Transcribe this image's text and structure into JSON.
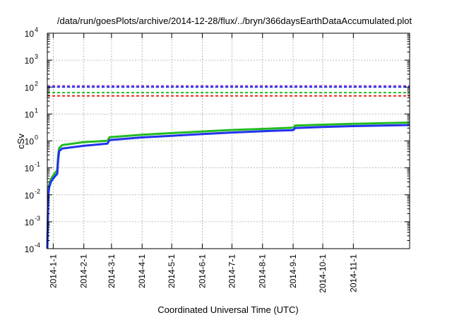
{
  "chart_data": {
    "type": "line",
    "title": "/data/run/goesPlots/archive/2014-12-28/flux/../bryn/366daysEarthDataAccumulated.plot",
    "xlabel": "Coordinated Universal Time (UTC)",
    "ylabel": "cSv",
    "xlim": [
      "2013-12-26",
      "2014-12-28"
    ],
    "ylim": [
      0.0001,
      10000
    ],
    "yscale": "log",
    "grid": true,
    "x_ticks": [
      "2014-1-1",
      "2014-2-1",
      "2014-3-1",
      "2014-4-1",
      "2014-5-1",
      "2014-6-1",
      "2014-7-1",
      "2014-8-1",
      "2014-9-1",
      "2014-10-1",
      "2014-11-1"
    ],
    "y_ticks": [
      {
        "value": 0.0001,
        "base": "10",
        "exp": "-4"
      },
      {
        "value": 0.001,
        "base": "10",
        "exp": "-3"
      },
      {
        "value": 0.01,
        "base": "10",
        "exp": "-2"
      },
      {
        "value": 0.1,
        "base": "10",
        "exp": "-1"
      },
      {
        "value": 1,
        "base": "10",
        "exp": "0"
      },
      {
        "value": 10,
        "base": "10",
        "exp": "1"
      },
      {
        "value": 100,
        "base": "10",
        "exp": "2"
      },
      {
        "value": 1000,
        "base": "10",
        "exp": "3"
      },
      {
        "value": 10000,
        "base": "10",
        "exp": "4"
      }
    ],
    "threshold_lines": [
      {
        "value": 110,
        "color": "#9a3dd6"
      },
      {
        "value": 100,
        "color": "#2233ee"
      },
      {
        "value": 62,
        "color": "#22bb22"
      },
      {
        "value": 47,
        "color": "#ee2222"
      }
    ],
    "series": [
      {
        "color": "#22bb22",
        "points": [
          [
            "2013-12-26",
            0.0001
          ],
          [
            "2013-12-27",
            0.012
          ],
          [
            "2013-12-28",
            0.025
          ],
          [
            "2013-12-30",
            0.04
          ],
          [
            "2014-01-02",
            0.06
          ],
          [
            "2014-01-05",
            0.08
          ],
          [
            "2014-01-06",
            0.3
          ],
          [
            "2014-01-07",
            0.55
          ],
          [
            "2014-01-10",
            0.7
          ],
          [
            "2014-02-01",
            0.9
          ],
          [
            "2014-02-25",
            1.02
          ],
          [
            "2014-02-27",
            1.38
          ],
          [
            "2014-04-01",
            1.7
          ],
          [
            "2014-05-01",
            1.95
          ],
          [
            "2014-06-01",
            2.25
          ],
          [
            "2014-07-01",
            2.55
          ],
          [
            "2014-08-01",
            2.8
          ],
          [
            "2014-09-01",
            3.1
          ],
          [
            "2014-09-03",
            3.7
          ],
          [
            "2014-10-01",
            4.0
          ],
          [
            "2014-11-01",
            4.3
          ],
          [
            "2014-12-28",
            4.8
          ]
        ]
      },
      {
        "color": "#2233ee",
        "points": [
          [
            "2013-12-26",
            0.0001
          ],
          [
            "2013-12-27",
            0.01
          ],
          [
            "2013-12-28",
            0.02
          ],
          [
            "2013-12-30",
            0.032
          ],
          [
            "2014-01-02",
            0.045
          ],
          [
            "2014-01-05",
            0.06
          ],
          [
            "2014-01-06",
            0.2
          ],
          [
            "2014-01-07",
            0.42
          ],
          [
            "2014-01-10",
            0.52
          ],
          [
            "2014-02-01",
            0.66
          ],
          [
            "2014-02-25",
            0.8
          ],
          [
            "2014-02-27",
            1.08
          ],
          [
            "2014-04-01",
            1.35
          ],
          [
            "2014-05-01",
            1.55
          ],
          [
            "2014-06-01",
            1.8
          ],
          [
            "2014-07-01",
            2.05
          ],
          [
            "2014-08-01",
            2.3
          ],
          [
            "2014-09-01",
            2.5
          ],
          [
            "2014-09-03",
            3.0
          ],
          [
            "2014-10-01",
            3.3
          ],
          [
            "2014-11-01",
            3.55
          ],
          [
            "2014-12-28",
            3.9
          ]
        ]
      }
    ]
  }
}
